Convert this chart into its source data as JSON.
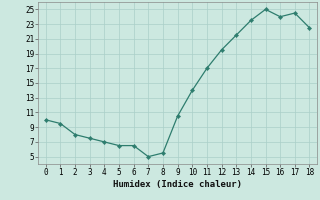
{
  "x": [
    0,
    1,
    2,
    3,
    4,
    5,
    6,
    7,
    8,
    9,
    10,
    11,
    12,
    13,
    14,
    15,
    16,
    17,
    18
  ],
  "y": [
    10,
    9.5,
    8,
    7.5,
    7,
    6.5,
    6.5,
    5,
    5.5,
    10.5,
    14,
    17,
    19.5,
    21.5,
    23.5,
    25,
    24,
    24.5,
    22.5
  ],
  "line_color": "#2e7d6e",
  "marker_color": "#2e7d6e",
  "bg_color": "#cce8e0",
  "grid_color": "#aacfc8",
  "xlabel": "Humidex (Indice chaleur)",
  "xlim": [
    -0.5,
    18.5
  ],
  "ylim": [
    4,
    26
  ],
  "yticks": [
    5,
    7,
    9,
    11,
    13,
    15,
    17,
    19,
    21,
    23,
    25
  ],
  "xticks": [
    0,
    1,
    2,
    3,
    4,
    5,
    6,
    7,
    8,
    9,
    10,
    11,
    12,
    13,
    14,
    15,
    16,
    17,
    18
  ],
  "tick_fontsize": 5.5,
  "label_fontsize": 6.5
}
